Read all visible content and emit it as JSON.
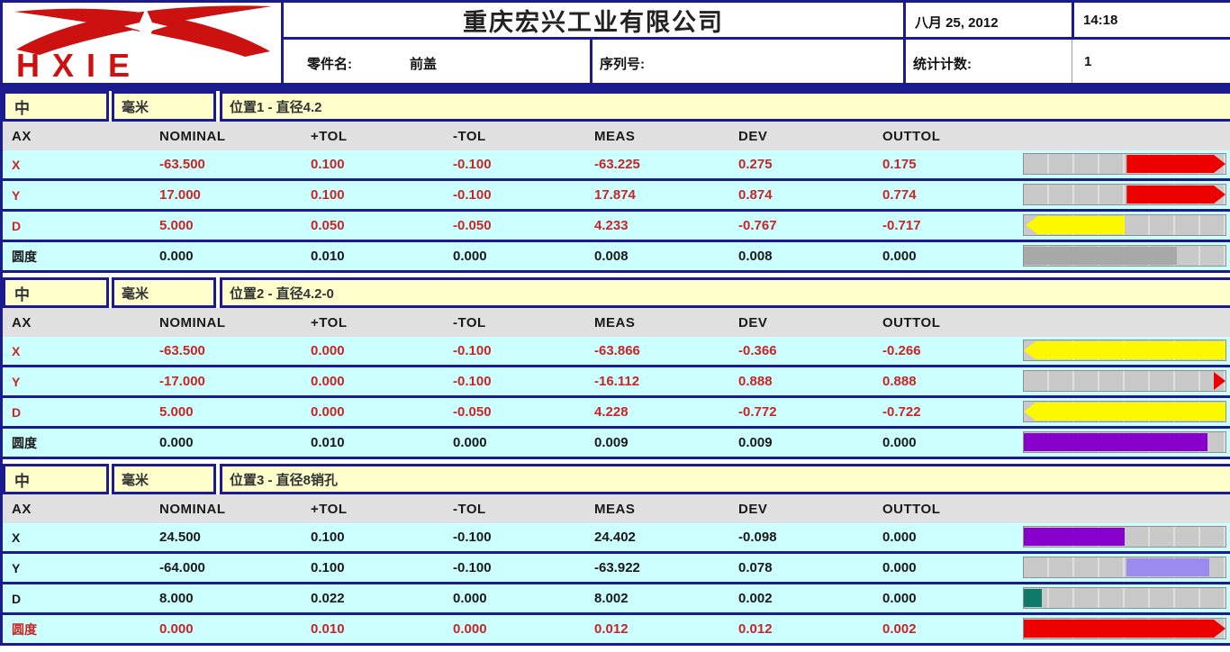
{
  "header": {
    "logo_text": "HXIE",
    "company": "重庆宏兴工业有限公司",
    "date": "八月 25, 2012",
    "time": "14:18",
    "part_label": "零件名:",
    "part_value": "前盖",
    "serial_label": "序列号:",
    "serial_value": "",
    "stats_label": "统计计数:",
    "stats_value": "1"
  },
  "table": {
    "columns": [
      "AX",
      "NOMINAL",
      "+TOL",
      "-TOL",
      "MEAS",
      "DEV",
      "OUTTOL"
    ],
    "sections": [
      {
        "symbol": "中",
        "units": "毫米",
        "title": "位置1 - 直径4.2",
        "rows": [
          {
            "ax": "X",
            "nominal": "-63.500",
            "ptol": "0.100",
            "ntol": "-0.100",
            "meas": "-63.225",
            "dev": "0.275",
            "outtol": "0.175",
            "text_color": "red",
            "bar": {
              "shape": "arrow-right",
              "color": "#ed0000",
              "start": 51,
              "end": 100
            }
          },
          {
            "ax": "Y",
            "nominal": "17.000",
            "ptol": "0.100",
            "ntol": "-0.100",
            "meas": "17.874",
            "dev": "0.874",
            "outtol": "0.774",
            "text_color": "red",
            "bar": {
              "shape": "arrow-right",
              "color": "#ed0000",
              "start": 51,
              "end": 100
            }
          },
          {
            "ax": "D",
            "nominal": "5.000",
            "ptol": "0.050",
            "ntol": "-0.050",
            "meas": "4.233",
            "dev": "-0.767",
            "outtol": "-0.717",
            "text_color": "red",
            "bar": {
              "shape": "arrow-left",
              "color": "#fcf800",
              "start": 1,
              "end": 50
            }
          },
          {
            "ax": "圆度",
            "nominal": "0.000",
            "ptol": "0.010",
            "ntol": "0.000",
            "meas": "0.008",
            "dev": "0.008",
            "outtol": "0.000",
            "text_color": "black",
            "bar": {
              "shape": "block",
              "color": "#a8a8a8",
              "start": 0,
              "end": 76
            }
          }
        ]
      },
      {
        "symbol": "中",
        "units": "毫米",
        "title": "位置2 - 直径4.2-0",
        "rows": [
          {
            "ax": "X",
            "nominal": "-63.500",
            "ptol": "0.000",
            "ntol": "-0.100",
            "meas": "-63.866",
            "dev": "-0.366",
            "outtol": "-0.266",
            "text_color": "red",
            "bar": {
              "shape": "arrow-left",
              "color": "#fcf800",
              "start": 0,
              "end": 100
            }
          },
          {
            "ax": "Y",
            "nominal": "-17.000",
            "ptol": "0.000",
            "ntol": "-0.100",
            "meas": "-16.112",
            "dev": "0.888",
            "outtol": "0.888",
            "text_color": "red",
            "bar": {
              "shape": "arrow-right",
              "color": "#ed0000",
              "start": 94,
              "end": 100
            }
          },
          {
            "ax": "D",
            "nominal": "5.000",
            "ptol": "0.000",
            "ntol": "-0.050",
            "meas": "4.228",
            "dev": "-0.772",
            "outtol": "-0.722",
            "text_color": "red",
            "bar": {
              "shape": "arrow-left",
              "color": "#fcf800",
              "start": 0,
              "end": 100
            }
          },
          {
            "ax": "圆度",
            "nominal": "0.000",
            "ptol": "0.010",
            "ntol": "0.000",
            "meas": "0.009",
            "dev": "0.009",
            "outtol": "0.000",
            "text_color": "black",
            "bar": {
              "shape": "block",
              "color": "#8800cc",
              "start": 0,
              "end": 91
            }
          }
        ]
      },
      {
        "symbol": "中",
        "units": "毫米",
        "title": "位置3 - 直径8销孔",
        "rows": [
          {
            "ax": "X",
            "nominal": "24.500",
            "ptol": "0.100",
            "ntol": "-0.100",
            "meas": "24.402",
            "dev": "-0.098",
            "outtol": "0.000",
            "text_color": "black",
            "bar": {
              "shape": "block",
              "color": "#8800cc",
              "start": 0,
              "end": 50
            }
          },
          {
            "ax": "Y",
            "nominal": "-64.000",
            "ptol": "0.100",
            "ntol": "-0.100",
            "meas": "-63.922",
            "dev": "0.078",
            "outtol": "0.000",
            "text_color": "black",
            "bar": {
              "shape": "block",
              "color": "#9b8bee",
              "start": 51,
              "end": 92
            }
          },
          {
            "ax": "D",
            "nominal": "8.000",
            "ptol": "0.022",
            "ntol": "0.000",
            "meas": "8.002",
            "dev": "0.002",
            "outtol": "0.000",
            "text_color": "black",
            "bar": {
              "shape": "block",
              "color": "#0e7a6a",
              "start": 0,
              "end": 9
            }
          },
          {
            "ax": "圆度",
            "nominal": "0.000",
            "ptol": "0.010",
            "ntol": "0.000",
            "meas": "0.012",
            "dev": "0.012",
            "outtol": "0.002",
            "text_color": "red",
            "bar": {
              "shape": "arrow-right",
              "color": "#ed0000",
              "start": 0,
              "end": 100
            }
          }
        ]
      }
    ]
  },
  "colors": {
    "red_text": "#cc2424",
    "navy_border": "#1b1b8e",
    "cream": "#ffffcc",
    "row_bg": "#ccffff",
    "col_header_bg": "#e0e0e0",
    "bar_bg": "#c9c9c9",
    "logo_red": "#cc1111"
  }
}
